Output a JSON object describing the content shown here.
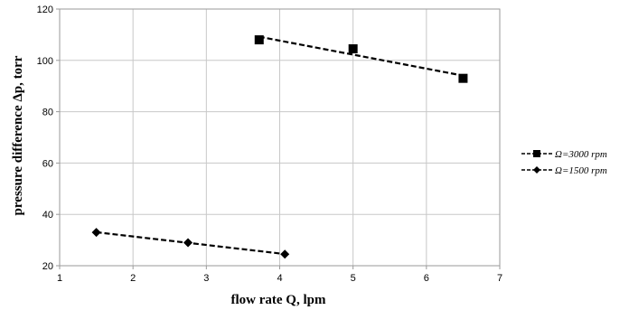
{
  "chart_data": {
    "type": "scatter",
    "title": "",
    "xlabel": "flow rate Q, lpm",
    "ylabel": "pressure difference Δp, torr",
    "xlim": [
      1,
      7
    ],
    "ylim": [
      20,
      120
    ],
    "x_ticks": [
      1,
      2,
      3,
      4,
      5,
      6,
      7
    ],
    "y_ticks": [
      20,
      40,
      60,
      80,
      100,
      120
    ],
    "grid": true,
    "legend_position": "right",
    "series": [
      {
        "name": "Ω=3000 rpm",
        "marker": "square",
        "color": "#000000",
        "trendline": "linear-dashed",
        "points": [
          {
            "x": 3.72,
            "y": 108
          },
          {
            "x": 5.0,
            "y": 104.5
          },
          {
            "x": 6.5,
            "y": 93
          }
        ]
      },
      {
        "name": "Ω=1500 rpm",
        "marker": "diamond",
        "color": "#000000",
        "trendline": "linear-dashed",
        "points": [
          {
            "x": 1.5,
            "y": 33
          },
          {
            "x": 2.75,
            "y": 29
          },
          {
            "x": 4.07,
            "y": 24.5
          }
        ]
      }
    ]
  }
}
